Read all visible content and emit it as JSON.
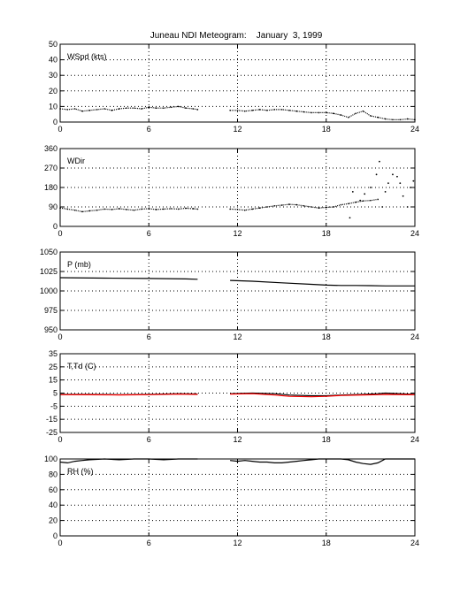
{
  "figure": {
    "title": "Juneau NDI Meteogram:    January  3, 1999"
  },
  "chart_data": [
    {
      "type": "scatter",
      "label": "WSpd (kts)",
      "x_range": [
        0,
        24
      ],
      "y_range": [
        0,
        50
      ],
      "x_ticks": [
        0,
        6,
        12,
        18,
        24
      ],
      "y_ticks": [
        0,
        10,
        20,
        30,
        40,
        50
      ],
      "grid": true,
      "series": [
        {
          "color": "#000000",
          "segments": [
            [
              [
                0.0,
                8.5
              ],
              [
                0.5,
                8.0
              ],
              [
                1.0,
                8.5
              ],
              [
                1.5,
                7.0
              ],
              [
                2.0,
                7.5
              ],
              [
                2.5,
                8.0
              ],
              [
                3.0,
                8.5
              ],
              [
                3.5,
                7.5
              ],
              [
                4.0,
                8.5
              ],
              [
                4.5,
                9.0
              ],
              [
                5.0,
                9.0
              ],
              [
                5.5,
                8.5
              ],
              [
                6.0,
                9.5
              ],
              [
                6.5,
                9.0
              ],
              [
                7.0,
                9.0
              ],
              [
                7.5,
                9.5
              ],
              [
                8.0,
                10.0
              ],
              [
                8.5,
                9.0
              ],
              [
                9.0,
                8.5
              ],
              [
                9.3,
                8.0
              ]
            ],
            [
              [
                11.5,
                7.5
              ],
              [
                12.0,
                7.5
              ],
              [
                12.5,
                7.0
              ],
              [
                13.0,
                7.5
              ],
              [
                13.5,
                8.0
              ],
              [
                14.0,
                7.5
              ],
              [
                14.5,
                8.0
              ],
              [
                15.0,
                8.0
              ],
              [
                15.5,
                7.5
              ],
              [
                16.0,
                7.0
              ],
              [
                16.5,
                6.5
              ],
              [
                17.0,
                6.0
              ],
              [
                17.5,
                6.0
              ],
              [
                18.0,
                6.0
              ],
              [
                18.5,
                5.5
              ],
              [
                19.0,
                4.5
              ],
              [
                19.5,
                3.0
              ],
              [
                20.0,
                5.5
              ],
              [
                20.5,
                7.0
              ],
              [
                21.0,
                4.0
              ],
              [
                21.5,
                3.0
              ],
              [
                22.0,
                2.0
              ],
              [
                22.5,
                1.5
              ],
              [
                23.0,
                1.5
              ],
              [
                23.5,
                2.0
              ],
              [
                24.0,
                1.5
              ]
            ]
          ]
        }
      ]
    },
    {
      "type": "scatter",
      "label": "WDir",
      "x_range": [
        0,
        24
      ],
      "y_range": [
        0,
        360
      ],
      "x_ticks": [
        0,
        6,
        12,
        18,
        24
      ],
      "y_ticks": [
        0,
        90,
        180,
        270,
        360
      ],
      "grid": true,
      "series": [
        {
          "color": "#000000",
          "segments": [
            [
              [
                0.0,
                85
              ],
              [
                0.5,
                80
              ],
              [
                1.0,
                75
              ],
              [
                1.5,
                68
              ],
              [
                2.0,
                72
              ],
              [
                2.5,
                75
              ],
              [
                3.0,
                80
              ],
              [
                3.5,
                78
              ],
              [
                4.0,
                82
              ],
              [
                4.5,
                78
              ],
              [
                5.0,
                75
              ],
              [
                5.5,
                80
              ],
              [
                6.0,
                82
              ],
              [
                6.5,
                78
              ],
              [
                7.0,
                80
              ],
              [
                7.5,
                82
              ],
              [
                8.0,
                80
              ],
              [
                8.5,
                84
              ],
              [
                9.0,
                82
              ],
              [
                9.3,
                80
              ]
            ],
            [
              [
                11.5,
                80
              ],
              [
                12.0,
                78
              ],
              [
                12.5,
                75
              ],
              [
                13.0,
                80
              ],
              [
                13.5,
                85
              ],
              [
                14.0,
                90
              ],
              [
                14.5,
                95
              ],
              [
                15.0,
                98
              ],
              [
                15.5,
                102
              ],
              [
                16.0,
                100
              ],
              [
                16.5,
                95
              ],
              [
                17.0,
                90
              ],
              [
                17.5,
                85
              ],
              [
                18.0,
                88
              ],
              [
                18.5,
                90
              ],
              [
                19.0,
                100
              ],
              [
                19.5,
                105
              ],
              [
                20.0,
                112
              ],
              [
                20.5,
                118
              ],
              [
                21.0,
                120
              ],
              [
                21.5,
                125
              ]
            ]
          ]
        },
        {
          "color": "#000000",
          "scattered": [
            [
              19.6,
              40
            ],
            [
              19.8,
              160
            ],
            [
              20.3,
              120
            ],
            [
              20.6,
              150
            ],
            [
              21.0,
              180
            ],
            [
              21.4,
              240
            ],
            [
              21.6,
              300
            ],
            [
              21.8,
              90
            ],
            [
              22.0,
              160
            ],
            [
              22.2,
              200
            ],
            [
              22.5,
              240
            ],
            [
              22.8,
              230
            ],
            [
              23.0,
              200
            ],
            [
              23.2,
              140
            ],
            [
              23.5,
              90
            ],
            [
              23.7,
              180
            ],
            [
              23.9,
              210
            ]
          ]
        }
      ]
    },
    {
      "type": "line",
      "label": "P (mb)",
      "x_range": [
        0,
        24
      ],
      "y_range": [
        950,
        1050
      ],
      "x_ticks": [
        0,
        6,
        12,
        18,
        24
      ],
      "y_ticks": [
        950,
        975,
        1000,
        1025,
        1050
      ],
      "grid": true,
      "series": [
        {
          "color": "#000000",
          "segments": [
            [
              [
                0.0,
                1017
              ],
              [
                3.0,
                1016.5
              ],
              [
                6.0,
                1016
              ],
              [
                8.5,
                1015.5
              ],
              [
                9.3,
                1015
              ]
            ],
            [
              [
                11.5,
                1013.5
              ],
              [
                13.0,
                1012.5
              ],
              [
                15.0,
                1010.5
              ],
              [
                17.0,
                1008.5
              ],
              [
                18.0,
                1007.5
              ],
              [
                19.0,
                1007.0
              ],
              [
                20.0,
                1007.0
              ],
              [
                21.0,
                1006.8
              ],
              [
                22.0,
                1006.5
              ],
              [
                24.0,
                1006.5
              ]
            ]
          ]
        }
      ]
    },
    {
      "type": "line",
      "label": "T,Td (C)",
      "x_range": [
        0,
        24
      ],
      "y_range": [
        -25,
        35
      ],
      "x_ticks": [
        0,
        6,
        12,
        18,
        24
      ],
      "y_ticks": [
        -25,
        -15,
        -5,
        5,
        15,
        25,
        35
      ],
      "grid": true,
      "series": [
        {
          "color": "#000000",
          "segments": [
            [
              [
                0.0,
                4.0
              ],
              [
                2.0,
                4.0
              ],
              [
                4.0,
                3.8
              ],
              [
                6.0,
                4.0
              ],
              [
                8.0,
                4.5
              ],
              [
                9.3,
                4.3
              ]
            ],
            [
              [
                11.5,
                4.5
              ],
              [
                13.0,
                5.0
              ],
              [
                14.5,
                4.5
              ],
              [
                15.5,
                3.5
              ],
              [
                17.0,
                3.0
              ],
              [
                18.0,
                3.0
              ],
              [
                19.0,
                3.5
              ],
              [
                20.5,
                4.0
              ],
              [
                21.5,
                4.5
              ],
              [
                22.0,
                5.0
              ],
              [
                24.0,
                4.0
              ]
            ]
          ]
        },
        {
          "color": "#ff0000",
          "segments": [
            [
              [
                0.0,
                3.8
              ],
              [
                2.0,
                3.7
              ],
              [
                4.0,
                3.6
              ],
              [
                6.0,
                3.8
              ],
              [
                8.0,
                4.2
              ],
              [
                9.3,
                4.0
              ]
            ],
            [
              [
                11.5,
                4.2
              ],
              [
                13.0,
                4.5
              ],
              [
                14.5,
                3.5
              ],
              [
                15.5,
                2.5
              ],
              [
                17.0,
                2.2
              ],
              [
                18.0,
                2.5
              ],
              [
                19.0,
                3.2
              ],
              [
                20.5,
                3.6
              ],
              [
                21.5,
                3.8
              ],
              [
                22.0,
                4.0
              ],
              [
                24.0,
                3.7
              ]
            ]
          ]
        }
      ]
    },
    {
      "type": "line",
      "label": "RH (%)",
      "x_range": [
        0,
        24
      ],
      "y_range": [
        0,
        100
      ],
      "x_ticks": [
        0,
        6,
        12,
        18,
        24
      ],
      "y_ticks": [
        0,
        20,
        40,
        60,
        80,
        100
      ],
      "grid": true,
      "series": [
        {
          "color": "#000000",
          "segments": [
            [
              [
                0.0,
                96
              ],
              [
                0.5,
                95
              ],
              [
                1.0,
                97
              ],
              [
                1.5,
                98
              ],
              [
                2.0,
                99
              ],
              [
                3.0,
                100
              ],
              [
                4.0,
                99
              ],
              [
                5.0,
                100
              ],
              [
                6.0,
                100
              ],
              [
                7.0,
                99
              ],
              [
                8.0,
                100
              ],
              [
                9.3,
                100
              ]
            ],
            [
              [
                11.5,
                98
              ],
              [
                12.0,
                97
              ],
              [
                12.5,
                98
              ],
              [
                13.0,
                97
              ],
              [
                13.5,
                96
              ],
              [
                14.0,
                96
              ],
              [
                14.5,
                95
              ],
              [
                15.0,
                95
              ],
              [
                15.5,
                96
              ],
              [
                16.0,
                97
              ],
              [
                16.5,
                98
              ],
              [
                17.0,
                99
              ],
              [
                17.5,
                100
              ],
              [
                18.0,
                100
              ],
              [
                19.0,
                100
              ],
              [
                19.5,
                99
              ],
              [
                20.0,
                96
              ],
              [
                20.5,
                94
              ],
              [
                21.0,
                93
              ],
              [
                21.5,
                95
              ],
              [
                22.0,
                100
              ],
              [
                24.0,
                100
              ]
            ]
          ]
        }
      ]
    }
  ]
}
